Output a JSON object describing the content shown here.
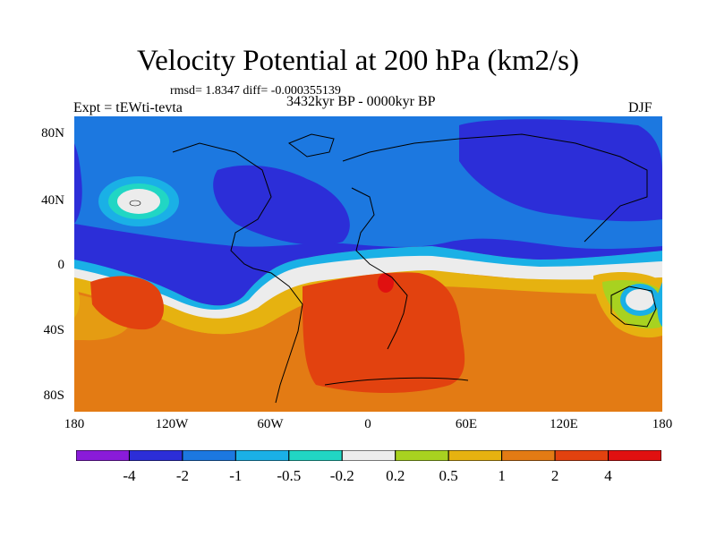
{
  "title": "Velocity Potential at 200 hPa (km2/s)",
  "stats_text": "rmsd= 1.8347 diff= -0.000355139",
  "left_label": "Expt = tEWti-tevta",
  "center_label": "3432kyr BP - 0000kyr BP",
  "right_label": "DJF",
  "lat_labels": [
    "80N",
    "40N",
    "0",
    "40S",
    "80S"
  ],
  "lon_labels": [
    "180",
    "120W",
    "60W",
    "0",
    "60E",
    "120E",
    "180"
  ],
  "colorbar": {
    "colors": [
      "#8a1bd9",
      "#2c2ed8",
      "#1c78e0",
      "#1ab0e6",
      "#21d6c4",
      "#ececec",
      "#a8d220",
      "#e6b210",
      "#e37b14",
      "#e2420f",
      "#e01010"
    ],
    "tick_labels": [
      "-4",
      "-2",
      "-1",
      "-0.5",
      "-0.2",
      "0.2",
      "0.5",
      "1",
      "2",
      "4"
    ]
  }
}
